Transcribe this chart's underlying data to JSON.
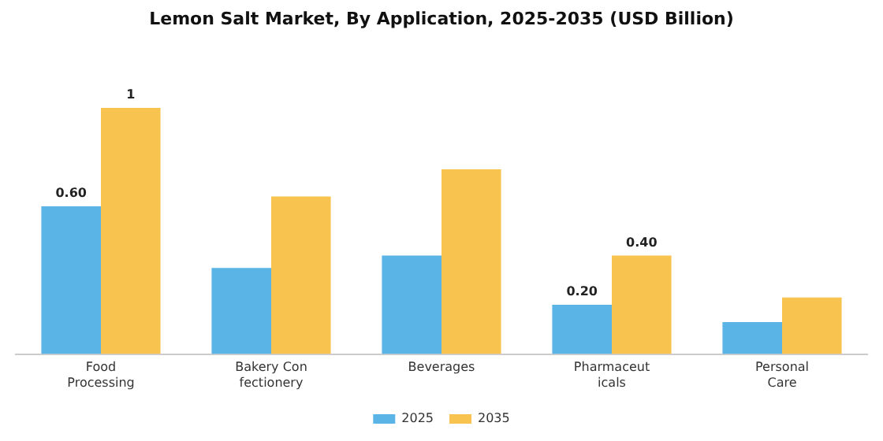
{
  "chart_data": {
    "type": "bar",
    "title": "Lemon Salt Market, By Application, 2025-2035 (USD Billion)",
    "categories": [
      "Food Processing",
      "Bakery Con fectionery",
      "Beverages",
      "Pharmaceut icals",
      "Personal Care"
    ],
    "series": [
      {
        "name": "2025",
        "color": "#5ab4e5",
        "values": [
          0.6,
          0.35,
          0.4,
          0.2,
          0.13
        ],
        "value_labels": [
          "0.60",
          null,
          null,
          "0.20",
          null
        ]
      },
      {
        "name": "2035",
        "color": "#f8c44f",
        "values": [
          1,
          0.64,
          0.75,
          0.4,
          0.23
        ],
        "value_labels": [
          "1",
          null,
          null,
          "0.40",
          null
        ]
      }
    ],
    "legend": "bottom",
    "grid": false
  }
}
